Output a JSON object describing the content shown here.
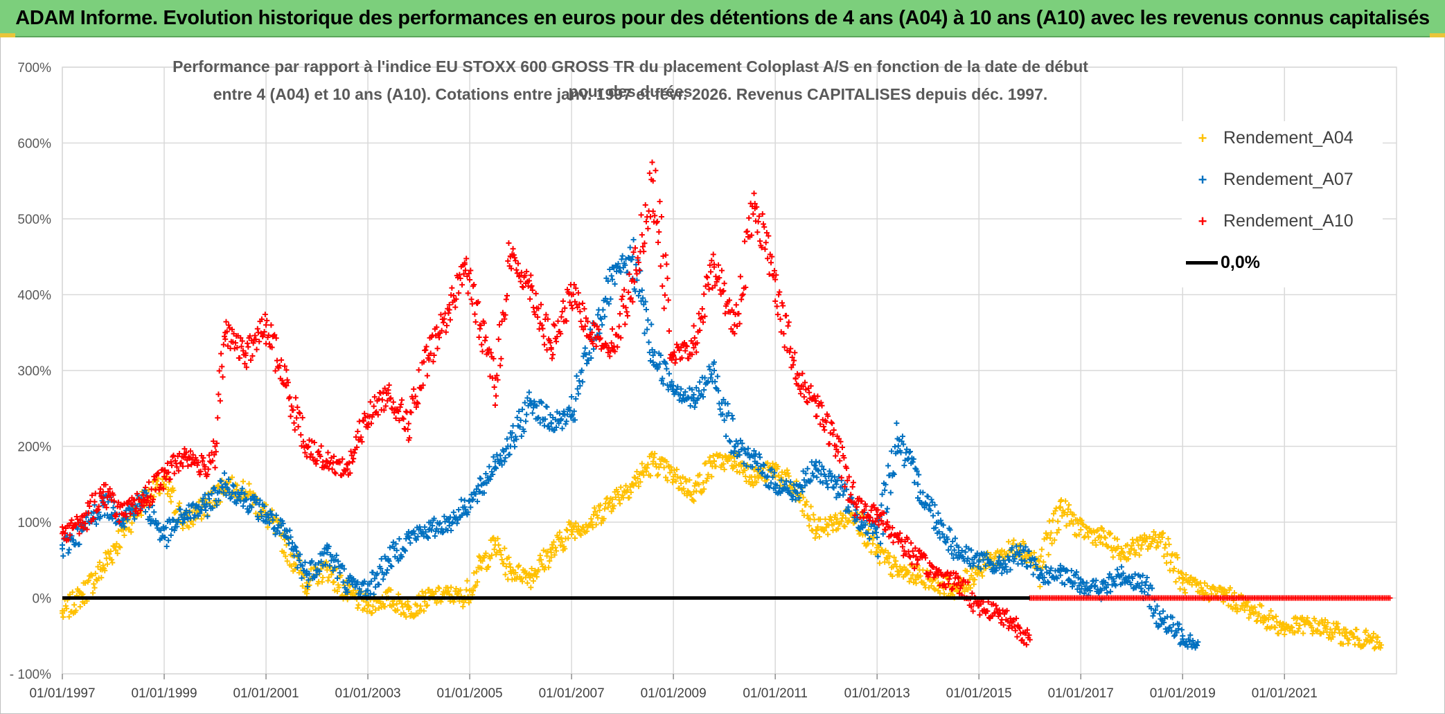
{
  "banner": "ADAM Informe. Evolution historique des performances en euros pour des détentions de 4 ans (A04) à 10 ans (A10) avec les revenus connus capitalisés",
  "colors": {
    "banner_bg": "#7ccf7c",
    "a04": "#ffc000",
    "a07": "#0070c0",
    "a10": "#ff0000",
    "zero": "#000000",
    "grid": "#d9d9d9"
  },
  "chart_data": {
    "type": "scatter",
    "title_line1": "Performance par rapport à l'indice EU STOXX 600 GROSS TR  du placement Coloplast A/S en fonction de la date de début pour des durées",
    "title_line2": "entre 4 (A04) et 10 ans (A10). Cotations entre janv. 1997 et févr. 2026. Revenus CAPITALISES depuis déc. 1997.",
    "x_tick_labels": [
      "01/01/1997",
      "01/01/1999",
      "01/01/2001",
      "01/01/2003",
      "01/01/2005",
      "01/01/2007",
      "01/01/2009",
      "01/01/2011",
      "01/01/2013",
      "01/01/2015",
      "01/01/2017",
      "01/01/2019",
      "01/01/2021"
    ],
    "x_tick_years": [
      1997,
      1999,
      2001,
      2003,
      2005,
      2007,
      2009,
      2011,
      2013,
      2015,
      2017,
      2019,
      2021
    ],
    "xlim": [
      1997,
      2023.2
    ],
    "y_tick_labels": [
      "700%",
      "600%",
      "500%",
      "400%",
      "300%",
      "200%",
      "100%",
      "0%",
      "- 100%"
    ],
    "y_tick_values": [
      700,
      600,
      500,
      400,
      300,
      200,
      100,
      0,
      -100
    ],
    "ylim": [
      -100,
      700
    ],
    "legend": [
      {
        "name": "Rendement_A04",
        "marker": "+"
      },
      {
        "name": "Rendement_A07",
        "marker": "+"
      },
      {
        "name": "Rendement_A10",
        "marker": "+"
      },
      {
        "name": "0,0%",
        "marker": "line"
      }
    ],
    "series": [
      {
        "name": "Rendement_A04",
        "color": "#ffc000",
        "x": [
          1997.0,
          1997.4,
          1997.8,
          1998.2,
          1998.6,
          1999.0,
          1999.4,
          1999.8,
          2000.2,
          2000.6,
          2001.0,
          2001.4,
          2001.8,
          2002.2,
          2002.6,
          2003.0,
          2003.4,
          2003.8,
          2004.2,
          2004.6,
          2004.9,
          2005.2,
          2005.5,
          2005.8,
          2006.2,
          2006.6,
          2007.0,
          2007.4,
          2007.8,
          2008.2,
          2008.6,
          2009.0,
          2009.4,
          2009.8,
          2010.2,
          2010.6,
          2011.0,
          2011.4,
          2011.8,
          2012.2,
          2012.6,
          2013.0,
          2013.4,
          2013.8,
          2014.2,
          2014.6,
          2015.0,
          2015.4,
          2015.8,
          2016.2,
          2016.6,
          2017.0,
          2017.4,
          2017.8,
          2018.2,
          2018.6,
          2019.0,
          2019.4,
          2019.8,
          2020.2,
          2020.6,
          2021.0,
          2021.4,
          2021.8,
          2022.2,
          2022.6,
          2022.9
        ],
        "y": [
          -20,
          5,
          40,
          90,
          130,
          150,
          100,
          120,
          150,
          140,
          110,
          70,
          20,
          40,
          5,
          -10,
          0,
          -15,
          0,
          5,
          0,
          40,
          70,
          35,
          30,
          60,
          90,
          100,
          130,
          150,
          180,
          160,
          140,
          180,
          180,
          160,
          170,
          140,
          90,
          100,
          110,
          60,
          35,
          30,
          20,
          10,
          40,
          55,
          70,
          40,
          120,
          90,
          80,
          60,
          70,
          80,
          20,
          10,
          5,
          -10,
          -25,
          -40,
          -35,
          -40,
          -50,
          -55,
          -62
        ]
      },
      {
        "name": "Rendement_A07",
        "color": "#0070c0",
        "x": [
          1997.0,
          1997.4,
          1997.8,
          1998.2,
          1998.6,
          1999.0,
          1999.4,
          1999.8,
          2000.2,
          2000.6,
          2001.0,
          2001.4,
          2001.8,
          2002.2,
          2002.6,
          2003.0,
          2003.4,
          2003.8,
          2004.2,
          2004.6,
          2004.9,
          2005.2,
          2005.5,
          2005.8,
          2006.2,
          2006.6,
          2007.0,
          2007.4,
          2007.8,
          2008.2,
          2008.6,
          2009.0,
          2009.4,
          2009.8,
          2010.2,
          2010.6,
          2011.0,
          2011.4,
          2011.8,
          2012.2,
          2012.6,
          2013.0,
          2013.4,
          2013.8,
          2014.2,
          2014.6,
          2015.0,
          2015.4,
          2015.8,
          2016.2,
          2016.6,
          2017.0,
          2017.4,
          2017.8,
          2018.2,
          2018.6,
          2019.0,
          2019.3
        ],
        "y": [
          65,
          90,
          125,
          105,
          130,
          80,
          110,
          120,
          150,
          130,
          110,
          80,
          30,
          60,
          20,
          10,
          50,
          80,
          90,
          100,
          120,
          140,
          180,
          200,
          260,
          230,
          240,
          340,
          420,
          450,
          320,
          280,
          260,
          300,
          200,
          180,
          150,
          140,
          170,
          150,
          110,
          80,
          210,
          150,
          100,
          60,
          50,
          40,
          60,
          30,
          30,
          20,
          10,
          30,
          20,
          -30,
          -50,
          -58
        ]
      },
      {
        "name": "Rendement_A10",
        "color": "#ff0000",
        "x": [
          1997.0,
          1997.4,
          1997.8,
          1998.2,
          1998.6,
          1999.0,
          1999.4,
          1999.8,
          2000.0,
          2000.2,
          2000.6,
          2001.0,
          2001.4,
          2001.8,
          2002.2,
          2002.6,
          2003.0,
          2003.4,
          2003.8,
          2004.2,
          2004.6,
          2004.9,
          2005.2,
          2005.5,
          2005.8,
          2006.2,
          2006.6,
          2007.0,
          2007.4,
          2007.8,
          2008.2,
          2008.6,
          2009.0,
          2009.4,
          2009.8,
          2010.2,
          2010.6,
          2011.0,
          2011.4,
          2011.8,
          2012.2,
          2012.6,
          2013.0,
          2013.4,
          2013.8,
          2014.2,
          2014.6,
          2015.0,
          2015.4,
          2015.8,
          2016.0
        ],
        "y": [
          85,
          100,
          140,
          110,
          130,
          160,
          190,
          170,
          200,
          350,
          320,
          360,
          280,
          200,
          180,
          170,
          240,
          270,
          230,
          320,
          380,
          440,
          360,
          290,
          450,
          410,
          330,
          400,
          350,
          330,
          420,
          550,
          320,
          330,
          440,
          360,
          520,
          420,
          290,
          260,
          200,
          120,
          110,
          80,
          50,
          30,
          20,
          -10,
          -20,
          -40,
          -55
        ]
      }
    ],
    "zero_line": {
      "name": "0,0%",
      "y": 0,
      "x_range": [
        1997,
        2023.2
      ]
    }
  }
}
